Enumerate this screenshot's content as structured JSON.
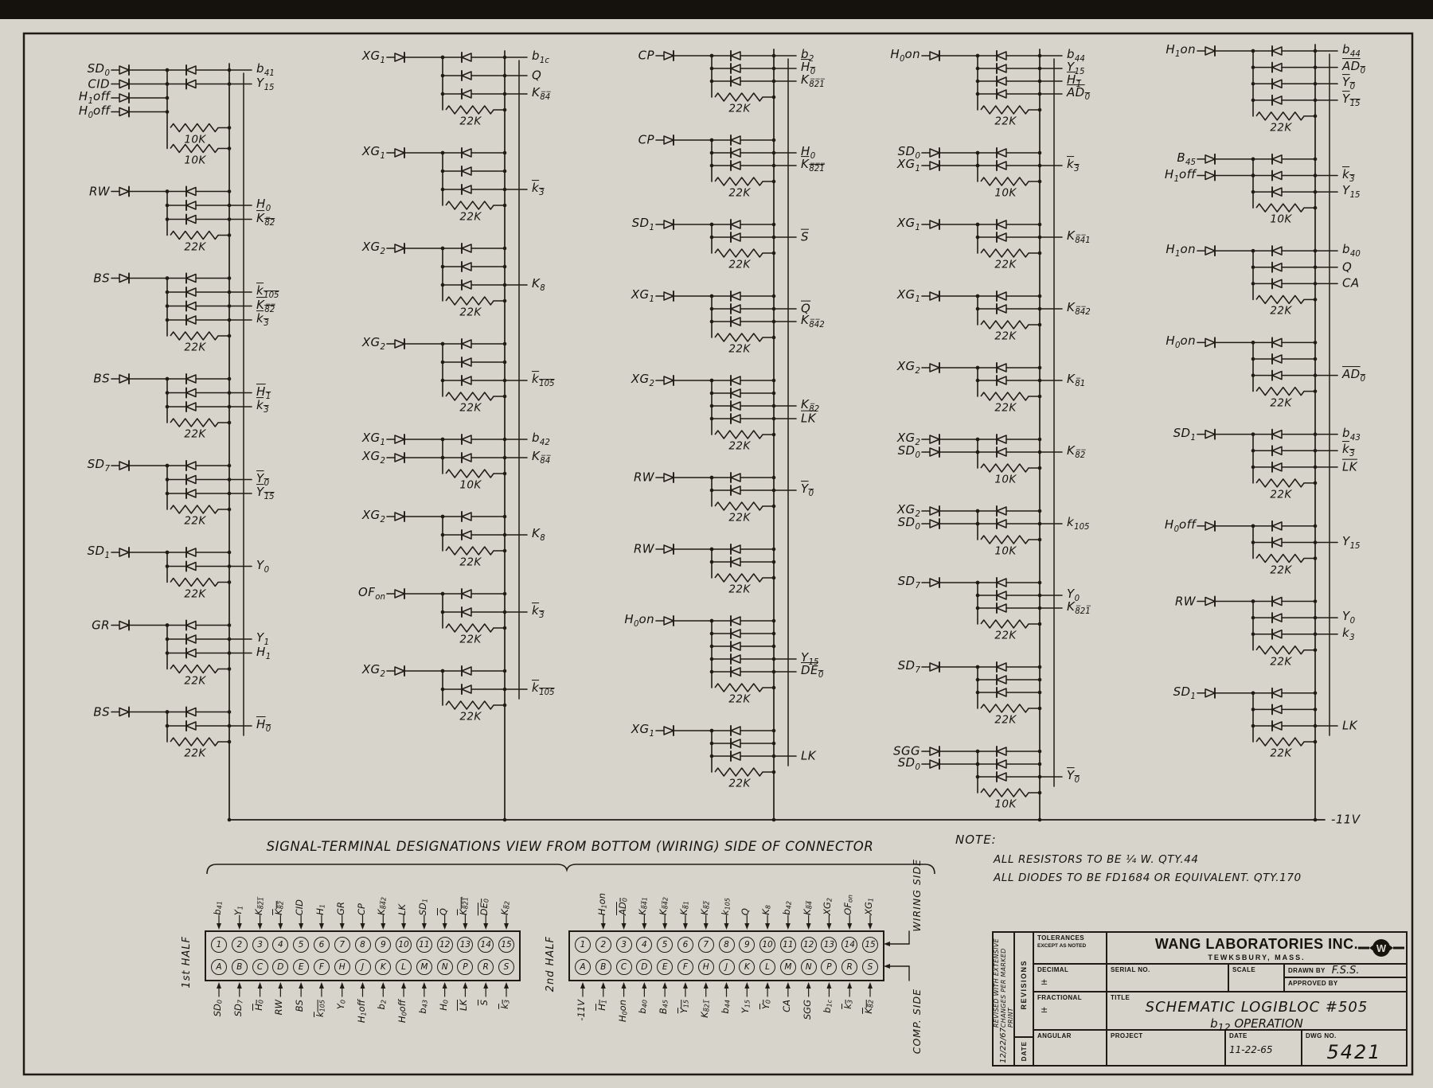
{
  "sheet": {
    "power_label": "-11V"
  },
  "note": {
    "label": "NOTE:",
    "lines": [
      "ALL RESISTORS TO BE ¼ W. QTY.44",
      "ALL DIODES TO BE FD1684 OR EQUIVALENT. QTY.170"
    ]
  },
  "schematic": {
    "columns": [
      {
        "groups": [
          {
            "inputs": [
              "SD_{0}",
              "CID",
              "H_{1}off",
              "H_{0}off"
            ],
            "rows": [
              "b_{41}",
              "Y_{15}"
            ],
            "resistors": [
              "10K",
              "10K"
            ]
          },
          {
            "inputs": [
              "RW"
            ],
            "rows": [
              null,
              "H_{0}",
              "~K_{8̅2}~"
            ],
            "resistors": [
              "22K"
            ]
          },
          {
            "inputs": [
              "BS"
            ],
            "rows": [
              null,
              "~k_{105}~",
              "~K_{8̅2̅}~",
              "~k_{3}~"
            ],
            "resistors": [
              "22K"
            ]
          },
          {
            "inputs": [
              "BS"
            ],
            "rows": [
              null,
              "~H_{1}~",
              "~k_{3}~"
            ],
            "resistors": [
              "22K"
            ]
          },
          {
            "inputs": [
              "SD_{7}"
            ],
            "rows": [
              null,
              "~Y_{0}~",
              "~Y_{15}~"
            ],
            "resistors": [
              "22K"
            ]
          },
          {
            "inputs": [
              "SD_{1}"
            ],
            "rows": [
              null,
              "Y_{0}"
            ],
            "resistors": [
              "22K"
            ]
          },
          {
            "inputs": [
              "GR"
            ],
            "rows": [
              null,
              "Y_{1}",
              "H_{1}"
            ],
            "resistors": [
              "22K"
            ]
          },
          {
            "inputs": [
              "BS"
            ],
            "rows": [
              null,
              "~H_{0}~"
            ],
            "resistors": [
              "22K"
            ]
          }
        ]
      },
      {
        "groups": [
          {
            "inputs": [
              "XG_{1}"
            ],
            "rows": [
              "b_{1c}",
              "Q",
              "K_{8̅4̅}"
            ],
            "resistors": [
              "22K"
            ]
          },
          {
            "inputs": [
              "XG_{1}"
            ],
            "rows": [
              null,
              null,
              "~k_{3}~"
            ],
            "resistors": [
              "22K"
            ]
          },
          {
            "inputs": [
              "XG_{2}"
            ],
            "rows": [
              null,
              null,
              "K_{8}"
            ],
            "resistors": [
              "22K"
            ]
          },
          {
            "inputs": [
              "XG_{2}"
            ],
            "rows": [
              null,
              null,
              "~k_{105}~"
            ],
            "resistors": [
              "22K"
            ]
          },
          {
            "inputs": [
              "XG_{1}",
              "XG_{2}"
            ],
            "rows": [
              "b_{42}",
              "K_{8̅4̅}"
            ],
            "resistors": [
              "10K"
            ]
          },
          {
            "inputs": [
              "XG_{2}"
            ],
            "rows": [
              null,
              "K_{8}"
            ],
            "resistors": [
              "22K"
            ]
          },
          {
            "inputs": [
              "OF_{on}"
            ],
            "rows": [
              null,
              "~k_{3}~"
            ],
            "resistors": [
              "22K"
            ]
          },
          {
            "inputs": [
              "XG_{2}"
            ],
            "rows": [
              null,
              "~k_{105}~"
            ],
            "resistors": [
              "22K"
            ]
          }
        ]
      },
      {
        "groups": [
          {
            "inputs": [
              "CP"
            ],
            "rows": [
              "b_{2}",
              "~H_{0}~",
              "K_{8̅2̅1̅}"
            ],
            "resistors": [
              "22K"
            ]
          },
          {
            "inputs": [
              "CP"
            ],
            "rows": [
              null,
              "H_{0}",
              "~K_{8̅2̅1̅}~"
            ],
            "resistors": [
              "22K"
            ]
          },
          {
            "inputs": [
              "SD_{1}"
            ],
            "rows": [
              null,
              "~S~"
            ],
            "resistors": [
              "22K"
            ]
          },
          {
            "inputs": [
              "XG_{1}"
            ],
            "rows": [
              null,
              "~Q~",
              "K_{8̅4̅2}"
            ],
            "resistors": [
              "22K"
            ]
          },
          {
            "inputs": [
              "XG_{2}"
            ],
            "rows": [
              null,
              null,
              "K_{8̅2}",
              "~LK~"
            ],
            "resistors": [
              "22K"
            ]
          },
          {
            "inputs": [
              "RW"
            ],
            "rows": [
              null,
              "~Y_{0}~"
            ],
            "resistors": [
              "22K"
            ]
          },
          {
            "inputs": [
              "RW"
            ],
            "rows": [
              null,
              null
            ],
            "resistors": [
              "22K"
            ]
          },
          {
            "inputs": [
              "H_{0}on"
            ],
            "rows": [
              null,
              null,
              null,
              "Y_{15}",
              "~DE_{0}~"
            ],
            "resistors": [
              "22K"
            ]
          },
          {
            "inputs": [
              "XG_{1}"
            ],
            "rows": [
              null,
              null,
              "LK"
            ],
            "resistors": [
              "22K"
            ]
          }
        ]
      },
      {
        "groups": [
          {
            "inputs": [
              "H_{0}on"
            ],
            "rows": [
              "b_{44}",
              "Y_{15}",
              "~H_{1}~",
              "~AD_{0}~"
            ],
            "resistors": [
              "22K"
            ]
          },
          {
            "inputs": [
              "SD_{0}",
              "XG_{1}"
            ],
            "rows": [
              null,
              "~k_{3}~"
            ],
            "resistors": [
              "10K"
            ]
          },
          {
            "inputs": [
              "XG_{1}"
            ],
            "rows": [
              null,
              "K_{8̅4̅1}"
            ],
            "resistors": [
              "22K"
            ]
          },
          {
            "inputs": [
              "XG_{1}"
            ],
            "rows": [
              null,
              "K_{8̅4̅2}"
            ],
            "resistors": [
              "22K"
            ]
          },
          {
            "inputs": [
              "XG_{2}"
            ],
            "rows": [
              null,
              "K_{8̅1}"
            ],
            "resistors": [
              "22K"
            ]
          },
          {
            "inputs": [
              "XG_{2}",
              "SD_{0}"
            ],
            "rows": [
              null,
              "K_{8̅2̅}"
            ],
            "resistors": [
              "10K"
            ]
          },
          {
            "inputs": [
              "XG_{2}",
              "SD_{0}"
            ],
            "rows": [
              null,
              "k_{105}"
            ],
            "resistors": [
              "10K"
            ]
          },
          {
            "inputs": [
              "SD_{7}"
            ],
            "rows": [
              null,
              "Y_{0}",
              "K_{8̅21̅}"
            ],
            "resistors": [
              "22K"
            ]
          },
          {
            "inputs": [
              "SD_{7}"
            ],
            "rows": [
              null,
              null,
              null
            ],
            "resistors": [
              "22K"
            ]
          },
          {
            "inputs": [
              "SGG",
              "SD_{0}"
            ],
            "rows": [
              null,
              null,
              "~Y_{0}~"
            ],
            "resistors": [
              "10K"
            ]
          }
        ]
      },
      {
        "groups": [
          {
            "inputs": [
              "H_{1}on"
            ],
            "rows": [
              "b_{44}",
              "~AD_{0}~",
              "~Y_{0}~",
              "~Y_{15}~"
            ],
            "resistors": [
              "22K"
            ]
          },
          {
            "inputs": [
              "B_{45}",
              "H_{1}off"
            ],
            "rows": [
              null,
              "~k_{3}~",
              "Y_{15}"
            ],
            "resistors": [
              "10K"
            ]
          },
          {
            "inputs": [
              "H_{1}on"
            ],
            "rows": [
              "b_{40}",
              "Q",
              "CA"
            ],
            "resistors": [
              "22K"
            ]
          },
          {
            "inputs": [
              "H_{0}on"
            ],
            "rows": [
              null,
              null,
              "~AD_{0}~"
            ],
            "resistors": [
              "22K"
            ]
          },
          {
            "inputs": [
              "SD_{1}"
            ],
            "rows": [
              "b_{43}",
              "~k_{3}~",
              "~LK~"
            ],
            "resistors": [
              "22K"
            ]
          },
          {
            "inputs": [
              "H_{0}off"
            ],
            "rows": [
              null,
              "Y_{15}"
            ],
            "resistors": [
              "22K"
            ]
          },
          {
            "inputs": [
              "RW"
            ],
            "rows": [
              null,
              "Y_{0}",
              "k_{3}"
            ],
            "resistors": [
              "22K"
            ]
          },
          {
            "inputs": [
              "SD_{1}"
            ],
            "rows": [
              null,
              null,
              "LK"
            ],
            "resistors": [
              "22K"
            ]
          }
        ]
      }
    ]
  },
  "connector": {
    "heading": "SIGNAL-TERMINAL DESIGNATIONS VIEW FROM BOTTOM (WIRING) SIDE OF CONNECTOR",
    "numbers": [
      "1",
      "2",
      "3",
      "4",
      "5",
      "6",
      "7",
      "8",
      "9",
      "10",
      "11",
      "12",
      "13",
      "14",
      "15"
    ],
    "letters": [
      "A",
      "B",
      "C",
      "D",
      "E",
      "F",
      "H",
      "J",
      "K",
      "L",
      "M",
      "N",
      "P",
      "R",
      "S"
    ],
    "wiring_side": "WIRING SIDE",
    "comp_side": "COMP. SIDE",
    "halves": [
      {
        "name": "1st HALF",
        "top": [
          "b_{41}",
          "Y_{1}",
          "K_{8̅2̅1̅}",
          "~K_{8̅2̅}~",
          "CID",
          "H_{1}",
          "GR",
          "CP",
          "K_{8̅4̅2}",
          "LK",
          "SD_{1}",
          "~Q~",
          "~K_{8̅2̅1̅}~",
          "~DE_{0}~",
          "K_{8̅2}"
        ],
        "bottom": [
          "SD_{0}",
          "SD_{7}",
          "~H_{0}~",
          "RW",
          "BS",
          "~k_{105}~",
          "Y_{0}",
          "H_{1}off",
          "b_{2}",
          "H_{0}off",
          "b_{43}",
          "H_{0}",
          "~LK~",
          "~S~",
          "~k_{3}~"
        ]
      },
      {
        "name": "2nd HALF",
        "top": [
          "",
          "H_{1}on",
          "~AD_{0}~",
          "K_{8̅4̅1}",
          "K_{8̅4̅2}",
          "K_{8̅1}",
          "K_{8̅2̅}",
          "k_{105}",
          "Q",
          "K_{8}",
          "b_{42}",
          "K_{8̅4̅}",
          "XG_{2}",
          "OF_{on}",
          "XG_{1}"
        ],
        "bottom": [
          "-11V",
          "~H_{1}~",
          "H_{0}on",
          "b_{40}",
          "B_{45}",
          "~Y_{15}~",
          "K_{8̅21̅}",
          "b_{44}",
          "Y_{15}",
          "~Y_{0}~",
          "CA",
          "SGG",
          "b_{1c}",
          "~k_{3}~",
          "~K_{8̅2}~"
        ]
      }
    ]
  },
  "title_block": {
    "revision_note": "REVISED WITH EXTENSIVE CHANGES PER MARKED PRINT",
    "revision_date": "12/22/67",
    "revisions_label": "REVISIONS",
    "rev_date_label": "DATE",
    "tolerances_label": "TOLERANCES",
    "tolerances_sub": "EXCEPT AS NOTED",
    "decimal_label": "DECIMAL",
    "decimal_value": "±",
    "fractional_label": "FRACTIONAL",
    "fractional_value": "±",
    "angular_label": "ANGULAR",
    "company": "WANG LABORATORIES INC.",
    "city": "TEWKSBURY, MASS.",
    "serial_label": "SERIAL NO.",
    "scale_label": "SCALE",
    "drawn_label": "DRAWN BY",
    "drawn_by": "F.S.S.",
    "approved_label": "APPROVED BY",
    "title_label": "TITLE",
    "title_line1": "SCHEMATIC LOGIBLOC #505",
    "title_line2": "b_{12} OPERATION",
    "project_label": "PROJECT",
    "date_label": "DATE",
    "date_value": "11-22-65",
    "dwg_label": "DWG NO.",
    "dwg_no": "5421"
  }
}
